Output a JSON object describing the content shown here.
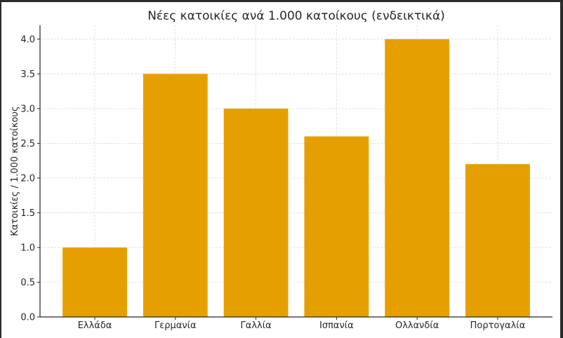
{
  "chart_data": {
    "type": "bar",
    "title": "Νέες κατοικίες ανά 1.000 κατοίκους (ενδεικτικά)",
    "xlabel": "",
    "ylabel": "Κατοικίες / 1.000 κατοίκους",
    "categories": [
      "Ελλάδα",
      "Γερμανία",
      "Γαλλία",
      "Ισπανία",
      "Ολλανδία",
      "Πορτογαλία"
    ],
    "values": [
      1.0,
      3.5,
      3.0,
      2.6,
      4.0,
      2.2
    ],
    "ylim": [
      0,
      4.2
    ],
    "yticks": [
      "0.0",
      "0.5",
      "1.0",
      "1.5",
      "2.0",
      "2.5",
      "3.0",
      "3.5",
      "4.0"
    ],
    "grid": true,
    "bar_color": "#E69F00"
  }
}
